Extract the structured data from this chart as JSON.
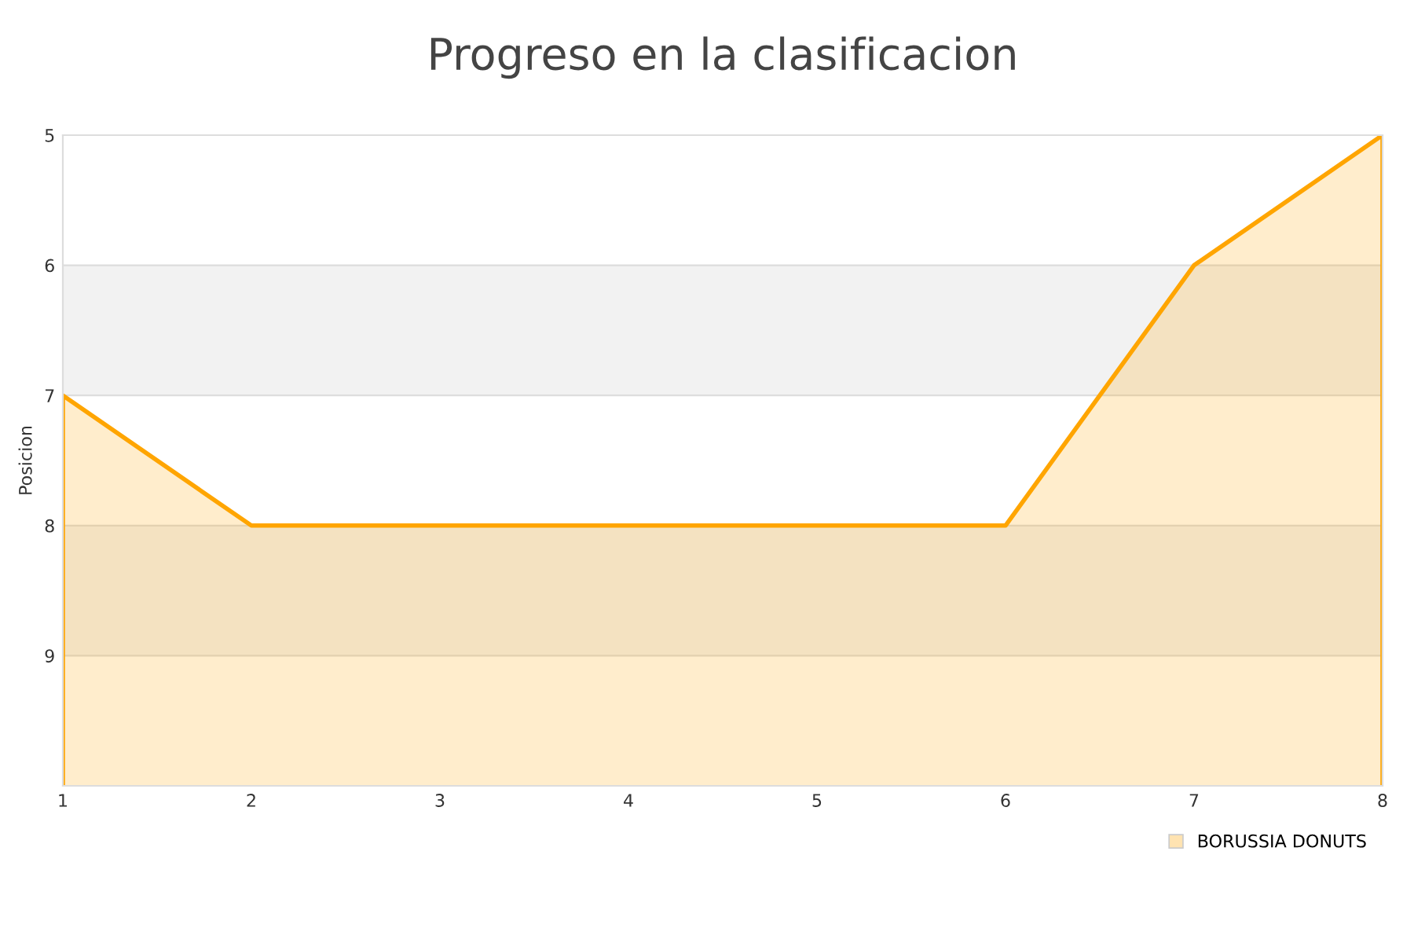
{
  "chart_data": {
    "type": "area",
    "title": "Progreso en la clasificacion",
    "ylabel": "Posicion",
    "x": [
      1,
      2,
      3,
      4,
      5,
      6,
      7,
      8
    ],
    "series": [
      {
        "name": "BORUSSIA DONUTS",
        "color": "#ffa500",
        "values": [
          7,
          8,
          8,
          8,
          8,
          8,
          6,
          5
        ]
      }
    ],
    "xlim": [
      1,
      8
    ],
    "xticks": [
      1,
      2,
      3,
      4,
      5,
      6,
      7,
      8
    ],
    "ylim": [
      10,
      5
    ],
    "yticks": [
      5,
      6,
      7,
      8,
      9
    ],
    "bands": [
      {
        "axis": "y",
        "from": 6,
        "to": 7,
        "color": "#f2f2f2"
      },
      {
        "axis": "y",
        "from": 8,
        "to": 9,
        "color": "#f2f2f2"
      }
    ],
    "grid": "y",
    "legend": "bottom right",
    "marker": "none"
  }
}
